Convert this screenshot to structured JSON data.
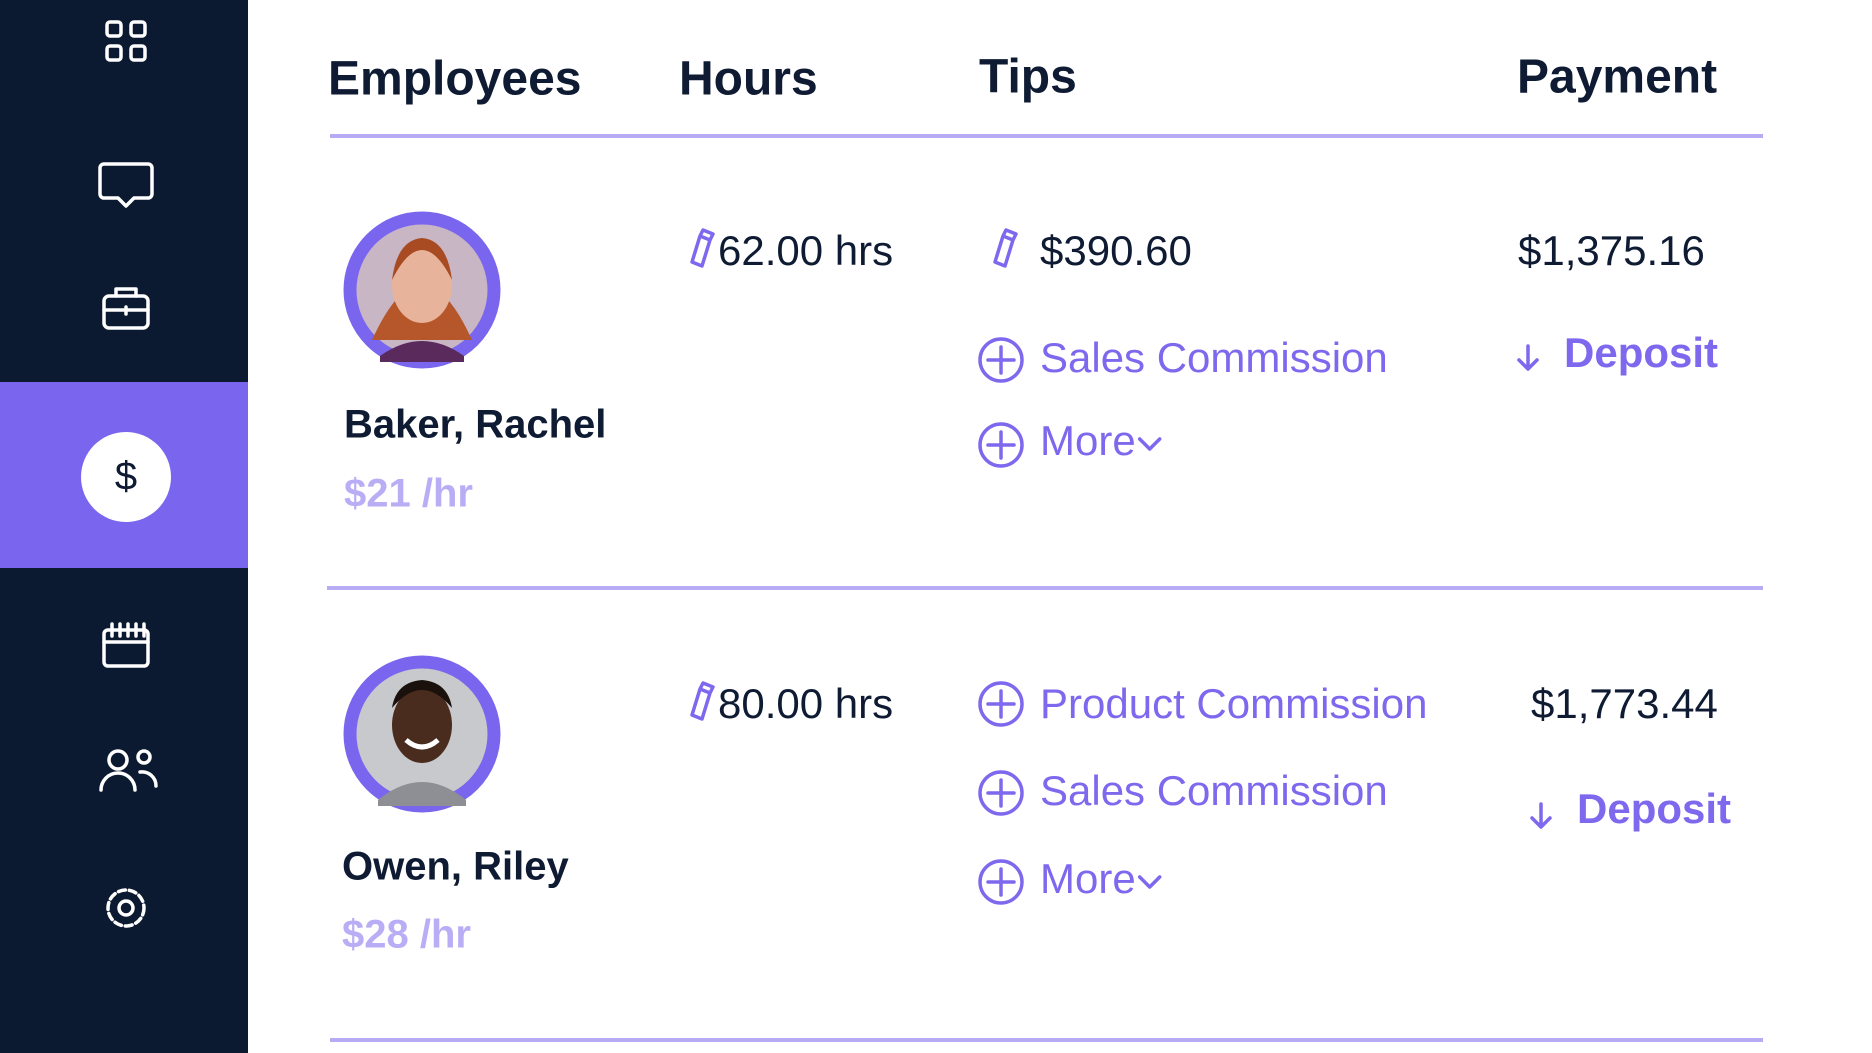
{
  "sidebar": {
    "active_label": "$"
  },
  "table": {
    "columns": [
      "Employees",
      "Hours",
      "Tips",
      "Payment"
    ],
    "rows": [
      {
        "name": "Baker, Rachel",
        "rate": "$21 /hr",
        "hours": "62.00 hrs",
        "tip": "$390.60",
        "items": [
          "Sales Commission",
          "More"
        ],
        "payment": "$1,375.16",
        "action": "Deposit"
      },
      {
        "name": "Owen, Riley",
        "rate": "$28 /hr",
        "hours": "80.00 hrs",
        "items": [
          "Product Commission",
          "Sales Commission",
          "More"
        ],
        "payment": "$1,773.44",
        "action": "Deposit"
      }
    ]
  }
}
